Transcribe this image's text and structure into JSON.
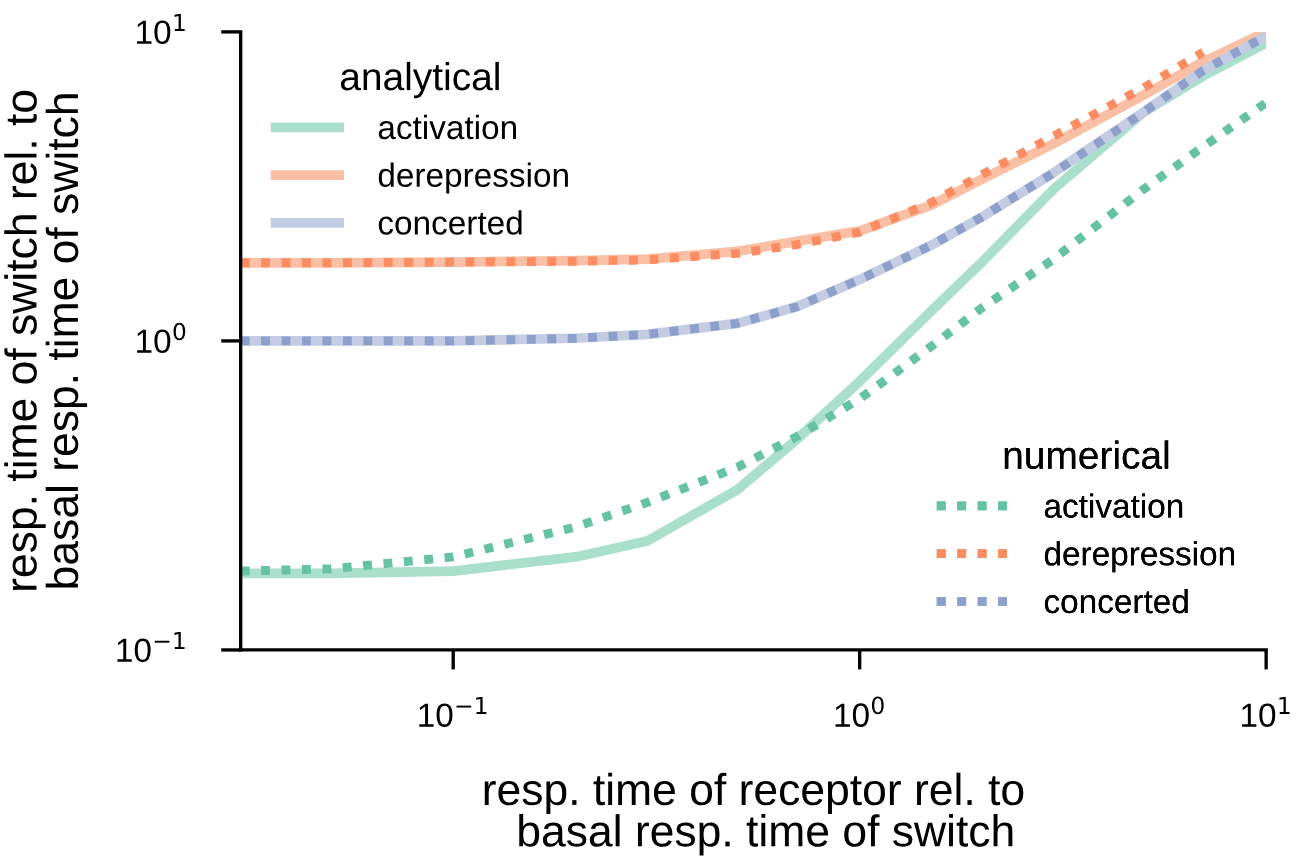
{
  "chart_data": {
    "type": "line",
    "xlabel": "resp. time of receptor rel. to\n  basal resp. time of switch",
    "ylabel": "resp. time of switch rel. to\nbasal resp. time of switch",
    "log": "xy",
    "xlim": [
      0.03,
      10
    ],
    "ylim": [
      0.1,
      10
    ],
    "xticks": [
      {
        "value": 0.1,
        "label": "10$^{−1}$"
      },
      {
        "value": 1,
        "label": "10$^{0}$"
      },
      {
        "value": 10,
        "label": "10$^{1}$"
      }
    ],
    "yticks": [
      {
        "value": 0.1,
        "label": "10$^{−1}$"
      },
      {
        "value": 1,
        "label": "10$^{0}$"
      },
      {
        "value": 10,
        "label": "10$^{1}$"
      }
    ],
    "x": [
      0.03,
      0.05,
      0.1,
      0.2,
      0.3,
      0.5,
      0.7,
      1,
      1.5,
      2,
      3,
      5,
      7,
      10
    ],
    "grid": false,
    "legend": [
      "top left",
      "bottom right"
    ],
    "legend_title": [
      "analytical",
      "numerical"
    ],
    "series": [
      {
        "name": "activation",
        "color": "#aadfcc",
        "line_style": "solid",
        "values": [
          0.177,
          0.177,
          0.18,
          0.2,
          0.225,
          0.33,
          0.48,
          0.74,
          1.25,
          1.8,
          3.1,
          5.5,
          7.2,
          9.2
        ]
      },
      {
        "name": "derepression",
        "color": "#f9c0a5",
        "line_style": "solid",
        "values": [
          1.79,
          1.79,
          1.8,
          1.82,
          1.84,
          1.95,
          2.1,
          2.27,
          2.75,
          3.34,
          4.35,
          6.25,
          8.0,
          10
        ]
      },
      {
        "name": "concerted",
        "color": "#c3cce3",
        "line_style": "solid",
        "values": [
          1.0,
          1.0,
          1.0,
          1.02,
          1.05,
          1.14,
          1.29,
          1.58,
          2.04,
          2.52,
          3.5,
          5.5,
          7.5,
          9.7
        ]
      },
      {
        "name": "activation",
        "color": "#66c2a5",
        "line_style": "dotted",
        "values": [
          0.18,
          0.183,
          0.2,
          0.25,
          0.3,
          0.39,
          0.49,
          0.65,
          0.96,
          1.28,
          1.84,
          3.1,
          4.25,
          5.9
        ]
      },
      {
        "name": "derepression",
        "color": "#fc8d62",
        "line_style": "dotted",
        "values": [
          1.79,
          1.79,
          1.8,
          1.81,
          1.83,
          1.92,
          2.05,
          2.25,
          2.8,
          3.45,
          4.6,
          6.6,
          8.6,
          null
        ]
      },
      {
        "name": "concerted",
        "color": "#8da0cb",
        "line_style": "dotted",
        "values": [
          1.0,
          1.0,
          1.0,
          1.02,
          1.05,
          1.14,
          1.29,
          1.58,
          2.04,
          2.52,
          3.5,
          5.5,
          7.5,
          9.7
        ]
      }
    ]
  }
}
